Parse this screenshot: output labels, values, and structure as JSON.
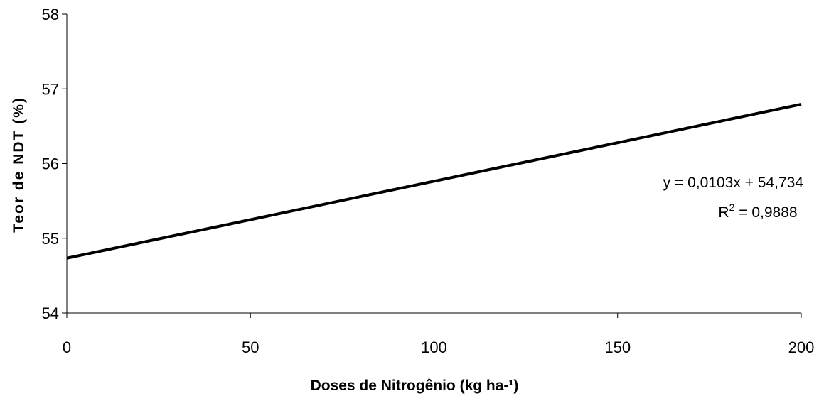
{
  "chart_data": {
    "type": "line",
    "xlabel": "Doses de Nitrogênio (kg ha-¹)",
    "ylabel": "Teor de NDT (%)",
    "xlim": [
      0,
      200
    ],
    "ylim": [
      54,
      58
    ],
    "x_ticks": [
      "0",
      "50",
      "100",
      "150",
      "200"
    ],
    "y_ticks": [
      "54",
      "55",
      "56",
      "57",
      "58"
    ],
    "grid": false,
    "series": [
      {
        "x": [
          0,
          200
        ],
        "y": [
          54.734,
          56.794
        ],
        "color": "#000000"
      }
    ],
    "annotations": {
      "equation": "y = 0,0103x + 54,734",
      "r2_prefix": "R",
      "r2_sup": "2",
      "r2_value": " = 0,9888"
    }
  }
}
